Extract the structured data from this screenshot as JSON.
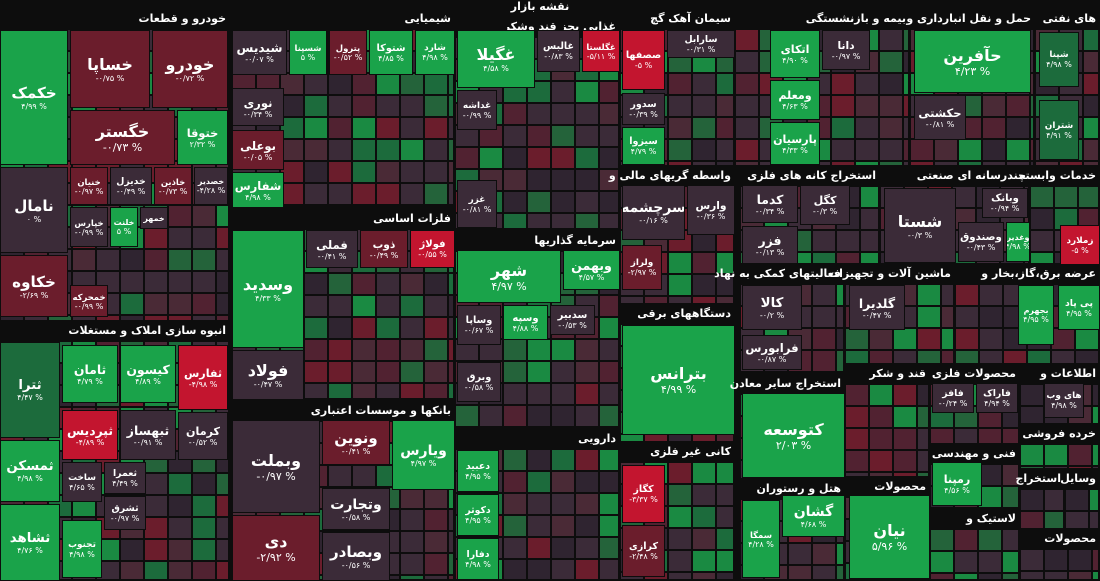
{
  "header": "نقشه بازار",
  "sectors": [
    {
      "title": "خودرو و قطعات",
      "tiles": [
        {
          "label": "خکمک",
          "change": "۴/۹۹ %",
          "color": "#1aa34a"
        },
        {
          "label": "خساپا",
          "change": "-۰/۷۵ %",
          "color": "#6b1d2c"
        },
        {
          "label": "خودرو",
          "change": "-۰/۷۲ %",
          "color": "#6b1d2c"
        },
        {
          "label": "خگستر",
          "change": "-۰/۷۳ %",
          "color": "#6b1d2c"
        },
        {
          "label": "ختوقا",
          "change": "۲/۳۲ %",
          "color": "#1aa34a"
        },
        {
          "label": "نامال",
          "change": "۰ %",
          "color": "#3b2b38"
        },
        {
          "label": "خنیان",
          "change": "-۰/۹۷ %",
          "color": "#6b1d2c"
        },
        {
          "label": "خدیزل",
          "change": "-۰/۴۹ %",
          "color": "#3b2b38"
        },
        {
          "label": "خاذین",
          "change": "-۰/۷۳ %",
          "color": "#6b1d2c"
        },
        {
          "label": "خصدیر",
          "change": "-۴/۲۸ %",
          "color": "#3b2b38"
        },
        {
          "label": "خپارس",
          "change": "-۰/۹۹ %",
          "color": "#3b2b38"
        },
        {
          "label": "خلنت",
          "change": "۵ %",
          "color": "#1aa34a"
        },
        {
          "label": "خمهر",
          "color": "#3b2b38"
        },
        {
          "label": "خکاوه",
          "change": "-۲/۶۹ %",
          "color": "#6b1d2c"
        },
        {
          "label": "خمحرکه",
          "change": "-۰/۹۹ %",
          "color": "#6b1d2c"
        }
      ]
    },
    {
      "title": "انبوه سازی املاک و مستغلات",
      "tiles": [
        {
          "label": "ثترا",
          "change": "۴/۴۷ %",
          "color": "#1c6b3c"
        },
        {
          "label": "ثامان",
          "change": "۴/۷۹ %",
          "color": "#1aa34a"
        },
        {
          "label": "کیسون",
          "change": "۴/۸۹ %",
          "color": "#1aa34a"
        },
        {
          "label": "ثفارس",
          "change": "-۴/۹۸ %",
          "color": "#c3152f"
        },
        {
          "label": "ثپردیس",
          "change": "-۴/۸۹ %",
          "color": "#c3152f"
        },
        {
          "label": "ثبهساز",
          "change": "-۰/۹۱ %",
          "color": "#3b2b38"
        },
        {
          "label": "کرمان",
          "change": "-۰/۵۲ %",
          "color": "#3b2b38"
        },
        {
          "label": "ثمسکن",
          "change": "۴/۹۸ %",
          "color": "#1aa34a"
        },
        {
          "label": "ثشاهد",
          "change": "۴/۷۶ %",
          "color": "#1aa34a"
        },
        {
          "label": "ساخت",
          "change": "۴/۶۵ %",
          "color": "#3b2b38"
        },
        {
          "label": "ثعمرا",
          "change": "۴/۴۹ %",
          "color": "#3b2b38"
        },
        {
          "label": "ثشرق",
          "change": "-۰/۹۷ %",
          "color": "#3b2b38"
        },
        {
          "label": "تجنوب",
          "change": "۴/۹۸ %",
          "color": "#1aa34a"
        }
      ]
    },
    {
      "title": "شیمیایی",
      "tiles": [
        {
          "label": "شیدیس",
          "change": "-۰/۰۷ %",
          "color": "#3b2b38"
        },
        {
          "label": "شسپنا",
          "change": "۵ %",
          "color": "#1aa34a"
        },
        {
          "label": "پترول",
          "change": "-۰/۵۲ %",
          "color": "#6b1d2c"
        },
        {
          "label": "شتوکا",
          "change": "۴/۸۵ %",
          "color": "#1aa34a"
        },
        {
          "label": "شارد",
          "change": "۴/۹۸ %",
          "color": "#1aa34a"
        },
        {
          "label": "نوری",
          "change": "-۰/۳۴ %",
          "color": "#3b2b38"
        },
        {
          "label": "بوعلی",
          "change": "-۰/۰۵ %",
          "color": "#6b1d2c"
        },
        {
          "label": "شفارس",
          "change": "۴/۹۸ %",
          "color": "#1aa34a"
        }
      ]
    },
    {
      "title": "فلزات اساسی",
      "tiles": [
        {
          "label": "وسدید",
          "change": "۴/۳۳ %",
          "color": "#1aa34a"
        },
        {
          "label": "فملی",
          "change": "-۰/۴۱ %",
          "color": "#3b2b38"
        },
        {
          "label": "ذوب",
          "change": "-۰/۴۹ %",
          "color": "#6b1d2c"
        },
        {
          "label": "فولاژ",
          "change": "-۰/۵۵ %",
          "color": "#c3152f"
        },
        {
          "label": "فولاد",
          "change": "-۰/۴۷ %",
          "color": "#3b2b38"
        }
      ]
    },
    {
      "title": "بانکها و موسسات اعتباری",
      "tiles": [
        {
          "label": "وبملت",
          "change": "-۰/۹۷ %",
          "color": "#3b2b38"
        },
        {
          "label": "دی",
          "change": "-۲/۹۲ %",
          "color": "#6b1d2c"
        },
        {
          "label": "ونوین",
          "change": "-۰/۴۱ %",
          "color": "#6b1d2c"
        },
        {
          "label": "ویارس",
          "change": "۴/۹۷ %",
          "color": "#1aa34a"
        },
        {
          "label": "وتجارت",
          "change": "-۰/۵۸ %",
          "color": "#3b2b38"
        },
        {
          "label": "وبصادر",
          "change": "-۰/۵۶ %",
          "color": "#3b2b38"
        }
      ]
    },
    {
      "title": "غذایی بجز قند وشکر",
      "tiles": [
        {
          "label": "غگیلا",
          "change": "۴/۵۸ %",
          "color": "#1aa34a"
        },
        {
          "label": "غالبس",
          "change": "-۰/۸۳ %",
          "color": "#3b2b38"
        },
        {
          "label": "غگلستا",
          "change": "-۵/۱۱ %",
          "color": "#c3152f"
        },
        {
          "label": "غداشه",
          "change": "-۰/۹۹ %",
          "color": "#3b2b38"
        },
        {
          "label": "غزر",
          "change": "-۰/۸۱ %",
          "color": "#3b2b38"
        }
      ]
    },
    {
      "title": "سرمایه گذاریها",
      "tiles": [
        {
          "label": "شهر",
          "change": "۴/۹۷ %",
          "color": "#1aa34a"
        },
        {
          "label": "وبهمن",
          "change": "۴/۵۷ %",
          "color": "#1aa34a"
        },
        {
          "label": "وساپا",
          "change": "-۰/۶۷ %",
          "color": "#3b2b38"
        },
        {
          "label": "وسپه",
          "change": "۴/۸۸ %",
          "color": "#1aa34a"
        },
        {
          "label": "سدبیر",
          "change": "-۰/۵۳ %",
          "color": "#3b2b38"
        },
        {
          "label": "وبرق",
          "change": "-۰/۵۸ %",
          "color": "#3b2b38"
        }
      ]
    },
    {
      "title": "دارویی",
      "tiles": [
        {
          "label": "دعبید",
          "change": "۴/۹۵ %",
          "color": "#1aa34a"
        },
        {
          "label": "دکوثر",
          "change": "۴/۹۵ %",
          "color": "#1aa34a"
        },
        {
          "label": "دفارا",
          "change": "۴/۹۸ %",
          "color": "#1aa34a"
        }
      ]
    },
    {
      "title": "سیمان آهک گچ",
      "tiles": [
        {
          "label": "صصفها",
          "change": "-۵ %",
          "color": "#c3152f"
        },
        {
          "label": "سارابل",
          "change": "-۰/۳۱ %",
          "color": "#3b2b38"
        },
        {
          "label": "سدور",
          "change": "-۰/۳۹ %",
          "color": "#3b2b38"
        },
        {
          "label": "سیزوا",
          "change": "۴/۷۹ %",
          "color": "#1aa34a"
        }
      ]
    },
    {
      "title": "واسطه گریهای مالی و",
      "tiles": [
        {
          "label": "سرچشمه",
          "change": "-۰/۱۶ %",
          "color": "#3b2b38"
        },
        {
          "label": "وارس",
          "change": "-۰/۳۶ %",
          "color": "#3b2b38"
        },
        {
          "label": "ولراز",
          "change": "-۲/۹۷ %",
          "color": "#6b1d2c"
        }
      ]
    },
    {
      "title": "دستگاههای برقی",
      "tiles": [
        {
          "label": "بترانس",
          "change": "۴/۹۹ %",
          "color": "#1aa34a"
        }
      ]
    },
    {
      "title": "کانی غیر فلزی",
      "tiles": [
        {
          "label": "کگاز",
          "change": "-۳/۳۷ %",
          "color": "#c3152f"
        },
        {
          "label": "کرازی",
          "change": "-۲/۴۸ %",
          "color": "#6b1d2c"
        }
      ]
    },
    {
      "title": "بیمه و بازنشستگی",
      "tiles": [
        {
          "label": "اتکای",
          "change": "۴/۹۰ %",
          "color": "#1aa34a"
        },
        {
          "label": "دانا",
          "change": "-۰/۹۷ %",
          "color": "#3b2b38"
        },
        {
          "label": "ومعلم",
          "change": "۴/۶۳ %",
          "color": "#1aa34a"
        },
        {
          "label": "پارسیان",
          "change": "۴/۳۳ %",
          "color": "#1aa34a"
        }
      ]
    },
    {
      "title": "استخراج کانه های فلزی",
      "tiles": [
        {
          "label": "کدما",
          "change": "-۰/۳۴ %",
          "color": "#3b2b38"
        },
        {
          "label": "کگل",
          "change": "-۰/۳ %",
          "color": "#3b2b38"
        },
        {
          "label": "فزر",
          "change": "-۰/۱۳ %",
          "color": "#3b2b38"
        }
      ]
    },
    {
      "title": "فعالیتهای کمکی به نهاد",
      "tiles": [
        {
          "label": "کالا",
          "change": "-۰/۲ %",
          "color": "#3b2b38"
        },
        {
          "label": "فرابورس",
          "change": "-۰/۸۷ %",
          "color": "#3b2b38"
        }
      ]
    },
    {
      "title": "استخراج سایر معادن",
      "tiles": [
        {
          "label": "کتوسعه",
          "change": "۲/۰۳ %",
          "color": "#1aa34a"
        }
      ]
    },
    {
      "title": "هتل و رستوران",
      "tiles": [
        {
          "label": "گشان",
          "change": "۴/۶۸ %",
          "color": "#1aa34a"
        },
        {
          "label": "سمگا",
          "change": "۴/۲۸ %",
          "color": "#1aa34a"
        }
      ]
    },
    {
      "title": "حمل و نقل انبارداری و",
      "tiles": [
        {
          "label": "حآفرین",
          "change": "۴/۲۳ %",
          "color": "#1aa34a"
        },
        {
          "label": "حکشتی",
          "change": "-۰/۸۱ %",
          "color": "#3b2b38"
        }
      ]
    },
    {
      "title": "چندرسانه ای صنعتی",
      "tiles": [
        {
          "label": "شستا",
          "change": "-۰/۳ %",
          "color": "#3b2b38"
        },
        {
          "label": "وبانک",
          "change": "-۰/۹۴ %",
          "color": "#3b2b38"
        },
        {
          "label": "وصندوق",
          "change": "-۰/۴۳ %",
          "color": "#3b2b38"
        },
        {
          "label": "وغدیر",
          "change": "۴/۹۸ %",
          "color": "#1aa34a"
        }
      ]
    },
    {
      "title": "ماشین آلات و تجهیزات",
      "tiles": [
        {
          "label": "گلدیرا",
          "change": "-۰/۴۷ %",
          "color": "#3b2b38"
        }
      ]
    },
    {
      "title": "عرضه برق،گاز،بخار و",
      "tiles": [
        {
          "label": "بجهرم",
          "change": "۴/۹۵ %",
          "color": "#1aa34a"
        },
        {
          "label": "پی پاد",
          "change": "۴/۹۵ %",
          "color": "#1aa34a"
        }
      ]
    },
    {
      "title": "قند و شکر",
      "tiles": []
    },
    {
      "title": "محصولات فلزی",
      "tiles": [
        {
          "label": "فافز",
          "change": "-۰/۲۴ %",
          "color": "#3b2b38"
        },
        {
          "label": "فاراک",
          "change": "۴/۹۴ %",
          "color": "#3b2b38"
        }
      ]
    },
    {
      "title": "فنی و مهندسی",
      "tiles": [
        {
          "label": "رمپنا",
          "change": "۴/۵۶ %",
          "color": "#1aa34a"
        }
      ]
    },
    {
      "title": "لاستیک و",
      "tiles": []
    },
    {
      "title": "محصولات",
      "tiles": [
        {
          "label": "نیان",
          "change": "۵/۹۶ %",
          "color": "#1aa34a"
        }
      ]
    },
    {
      "title": "های نفتی",
      "tiles": [
        {
          "label": "شپنا",
          "change": "۴/۹۸ %",
          "color": "#1c6b3c"
        },
        {
          "label": "شتران",
          "change": "۴/۹۱ %",
          "color": "#1c6b3c"
        }
      ]
    },
    {
      "title": "خدمات وابسته",
      "tiles": [
        {
          "label": "زملارد",
          "change": "-۵ %",
          "color": "#c3152f"
        }
      ]
    },
    {
      "title": "اطلاعات و",
      "tiles": [
        {
          "label": "های وب",
          "change": "۴/۹۸ %",
          "color": "#3b2b38"
        }
      ]
    },
    {
      "title": "خرده فروشی",
      "tiles": []
    },
    {
      "title": "استخراج",
      "tiles": []
    },
    {
      "title": "وسایل",
      "tiles": []
    },
    {
      "title": "محصولات",
      "tiles": []
    }
  ]
}
